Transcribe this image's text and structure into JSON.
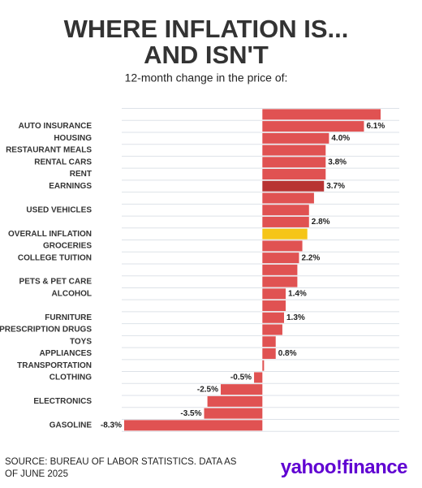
{
  "chart_data": {
    "type": "hbar",
    "title": [
      "WHERE INFLATION IS...",
      "AND ISN'T"
    ],
    "subtitle": "12-month change in the price of:",
    "categories": [
      null,
      "AUTO INSURANCE",
      "HOUSING",
      "RESTAURANT MEALS",
      "RENTAL CARS",
      "RENT",
      "EARNINGS",
      null,
      "USED VEHICLES",
      null,
      "OVERALL INFLATION",
      "GROCERIES",
      "COLLEGE TUITION",
      null,
      "PETS & PET CARE",
      "ALCOHOL",
      null,
      "FURNITURE",
      "PRESCRIPTION DRUGS",
      "TOYS",
      "APPLIANCES",
      "TRANSPORTATION",
      "CLOTHING",
      null,
      "ELECTRONICS",
      null,
      "GASOLINE"
    ],
    "values": [
      7.1,
      6.1,
      4.0,
      3.8,
      3.8,
      3.8,
      3.7,
      3.1,
      2.8,
      2.8,
      2.7,
      2.4,
      2.2,
      2.1,
      2.1,
      1.4,
      1.4,
      1.3,
      1.2,
      0.8,
      0.8,
      0.1,
      -0.5,
      -2.5,
      -3.3,
      -3.5,
      -8.3
    ],
    "value_labels": [
      null,
      "6.1%",
      "4.0%",
      null,
      "3.8%",
      null,
      "3.7%",
      null,
      null,
      "2.8%",
      null,
      null,
      "2.2%",
      null,
      null,
      "1.4%",
      null,
      "1.3%",
      null,
      null,
      "0.8%",
      null,
      "-0.5%",
      "-2.5%",
      null,
      "-3.5%",
      "-8.3%"
    ],
    "colors": [
      "#e05252",
      "#e05252",
      "#e05252",
      "#e05252",
      "#e05252",
      "#e05252",
      "#b83333",
      "#e05252",
      "#e05252",
      "#e05252",
      "#f5c518",
      "#e05252",
      "#e05252",
      "#e05252",
      "#e05252",
      "#e05252",
      "#e05252",
      "#e05252",
      "#e05252",
      "#e05252",
      "#e05252",
      "#e05252",
      "#e05252",
      "#e05252",
      "#e05252",
      "#e05252",
      "#e05252"
    ],
    "xlim": [
      -8.3,
      7.1
    ],
    "source": "SOURCE: BUREAU OF LABOR STATISTICS. DATA AS OF JUNE 2025",
    "logo": "yahoo!finance"
  }
}
